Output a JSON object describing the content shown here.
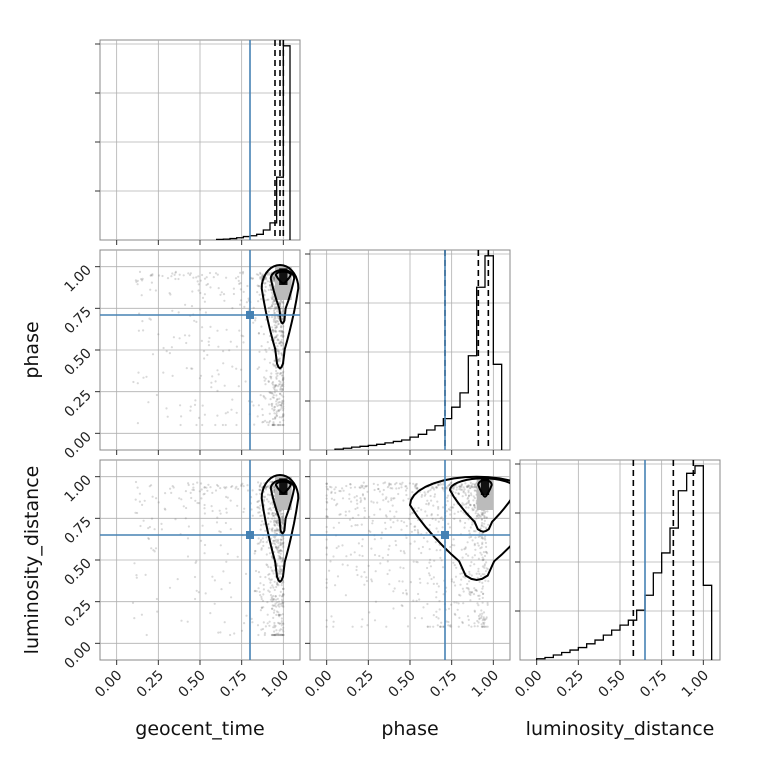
{
  "chart_data": {
    "type": "corner",
    "parameters": [
      "geocent_time",
      "phase",
      "luminosity_distance"
    ],
    "truths": {
      "geocent_time": 0.8,
      "phase": 0.71,
      "luminosity_distance": 0.65
    },
    "ticks": [
      "0.00",
      "0.25",
      "0.50",
      "0.75",
      "1.00"
    ],
    "axis_range": [
      -0.1,
      1.1
    ],
    "grid": true,
    "truth_color": "#4682b4",
    "hist_color": "#000000",
    "histograms": [
      {
        "parameter": "geocent_time",
        "quantiles": [
          0.95,
          0.98,
          1.0
        ],
        "bin_edges": [
          0.6,
          0.64,
          0.68,
          0.72,
          0.76,
          0.8,
          0.84,
          0.88,
          0.92,
          0.96,
          1.0,
          1.04
        ],
        "counts": [
          0.2,
          0.3,
          0.5,
          0.8,
          1.2,
          1.5,
          2.0,
          3.5,
          6.0,
          22.0,
          68.0
        ]
      },
      {
        "parameter": "phase",
        "quantiles": [
          0.71,
          0.91,
          0.97
        ],
        "bin_edges": [
          0.05,
          0.1,
          0.15,
          0.2,
          0.25,
          0.3,
          0.35,
          0.4,
          0.45,
          0.5,
          0.55,
          0.6,
          0.65,
          0.7,
          0.75,
          0.8,
          0.85,
          0.9,
          0.95,
          1.0,
          1.05
        ],
        "counts": [
          0.3,
          0.6,
          1,
          1.3,
          1.6,
          2,
          2.5,
          3,
          3.5,
          4.5,
          5.5,
          7,
          8.5,
          11,
          15,
          20,
          33,
          57,
          68,
          30
        ]
      },
      {
        "parameter": "luminosity_distance",
        "quantiles": [
          0.58,
          0.82,
          0.94
        ],
        "bin_edges": [
          0.0,
          0.05,
          0.1,
          0.15,
          0.2,
          0.25,
          0.3,
          0.35,
          0.4,
          0.45,
          0.5,
          0.55,
          0.6,
          0.65,
          0.7,
          0.75,
          0.8,
          0.85,
          0.9,
          0.95,
          1.0,
          1.05
        ],
        "counts": [
          0.5,
          1,
          2,
          3,
          4,
          5,
          6.5,
          8,
          10,
          12,
          14,
          16,
          20,
          26,
          35,
          43,
          53,
          68,
          75,
          78,
          30
        ]
      }
    ],
    "joint_panels": [
      {
        "x": "geocent_time",
        "y": "phase",
        "mode": [
          1.0,
          0.95
        ],
        "contour_levels": 3
      },
      {
        "x": "geocent_time",
        "y": "luminosity_distance",
        "mode": [
          1.0,
          0.95
        ],
        "contour_levels": 3
      },
      {
        "x": "phase",
        "y": "luminosity_distance",
        "mode": [
          0.95,
          0.95
        ],
        "contour_levels": 3
      }
    ]
  }
}
